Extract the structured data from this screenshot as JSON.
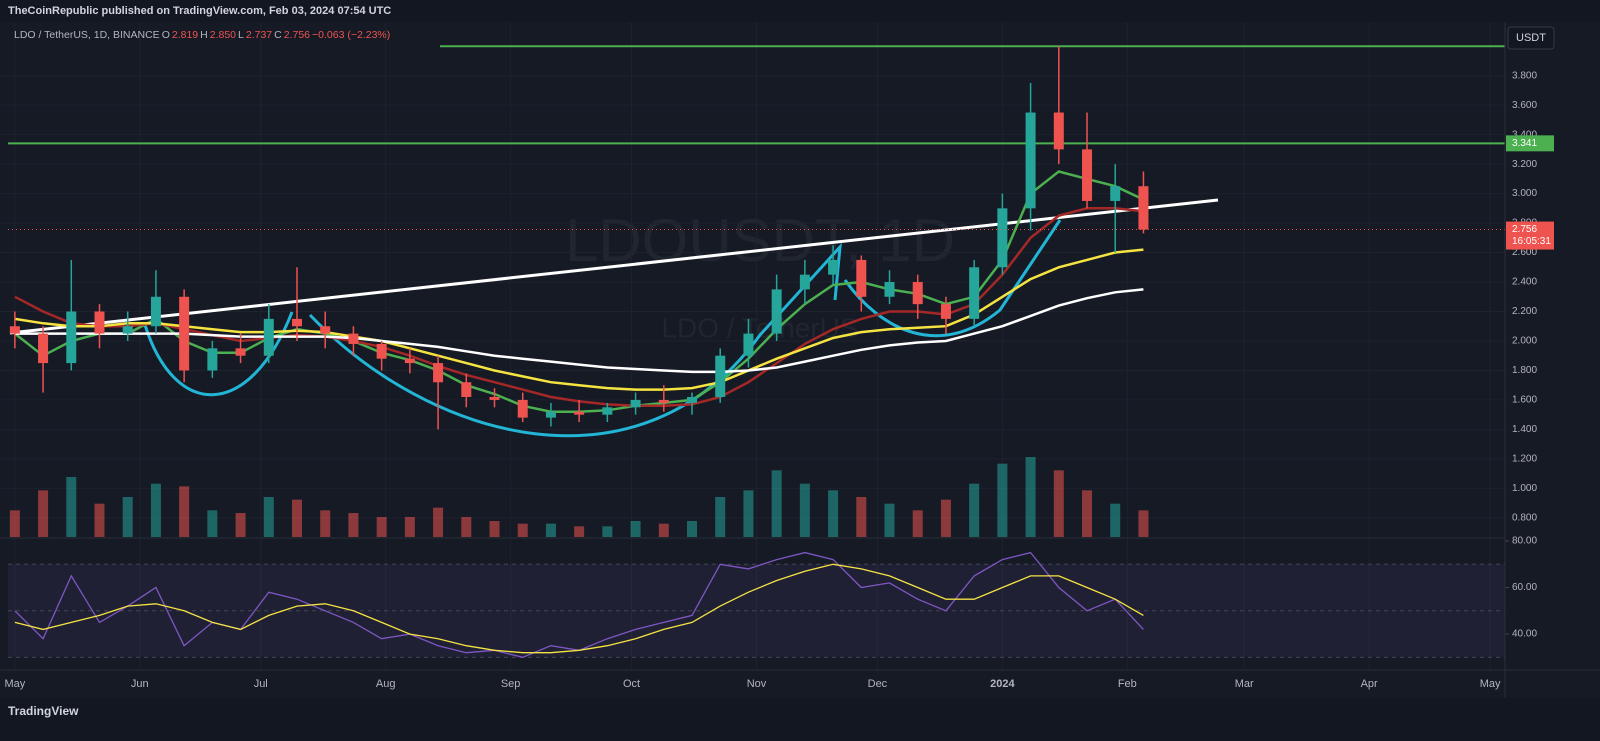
{
  "header": {
    "publisher": "TheCoinRepublic published on TradingView.com, Feb 03, 2024 07:54 UTC",
    "symbol": "LDO / TetherUS, 1D, BINANCE",
    "ohlc": [
      {
        "key": "O",
        "value": "2.819"
      },
      {
        "key": "H",
        "value": "2.850"
      },
      {
        "key": "L",
        "value": "2.737"
      },
      {
        "key": "C",
        "value": "2.756"
      }
    ],
    "change": "−0.063 (−2.23%)"
  },
  "footer": "TradingView",
  "chart_data": {
    "type": "candlestick",
    "currency": "USDT",
    "watermark": "LDOUSDT, 1D",
    "watermark_sub": "LDO / TetherUS",
    "up_color": "#26a69a",
    "down_color": "#ef5350",
    "x": [
      0,
      7,
      14,
      21,
      28,
      35,
      42,
      49,
      56,
      63,
      70,
      77,
      84,
      91,
      98,
      105,
      112,
      119,
      126,
      133,
      140,
      147,
      154,
      161,
      168,
      175,
      182,
      189,
      196,
      203,
      210,
      217,
      224,
      231,
      238,
      245,
      252,
      259,
      266,
      273,
      280
    ],
    "open": [
      2.1,
      2.05,
      1.85,
      2.2,
      2.05,
      2.1,
      2.3,
      1.8,
      1.95,
      1.9,
      2.15,
      2.1,
      2.05,
      1.98,
      1.88,
      1.85,
      1.72,
      1.62,
      1.6,
      1.48,
      1.52,
      1.5,
      1.55,
      1.6,
      1.58,
      1.62,
      1.9,
      2.05,
      2.35,
      2.45,
      2.55,
      2.3,
      2.4,
      2.25,
      2.15,
      2.5,
      2.9,
      3.55,
      3.3,
      2.95,
      3.05
    ],
    "high": [
      2.2,
      2.1,
      2.55,
      2.25,
      2.2,
      2.48,
      2.35,
      2.0,
      2.05,
      2.25,
      2.5,
      2.2,
      2.1,
      2.0,
      1.95,
      1.9,
      1.78,
      1.68,
      1.65,
      1.58,
      1.6,
      1.58,
      1.65,
      1.7,
      1.65,
      1.95,
      2.15,
      2.45,
      2.55,
      2.65,
      2.58,
      2.48,
      2.45,
      2.3,
      2.55,
      3.0,
      3.75,
      4.0,
      3.55,
      3.2,
      3.15
    ],
    "low": [
      1.95,
      1.65,
      1.8,
      1.95,
      2.0,
      2.05,
      1.72,
      1.75,
      1.85,
      1.85,
      2.0,
      1.95,
      1.9,
      1.8,
      1.78,
      1.4,
      1.55,
      1.55,
      1.45,
      1.42,
      1.45,
      1.45,
      1.5,
      1.52,
      1.5,
      1.58,
      1.82,
      2.0,
      2.25,
      2.38,
      2.2,
      2.25,
      2.15,
      2.05,
      2.1,
      2.45,
      2.75,
      3.2,
      2.9,
      2.6,
      2.73
    ],
    "close": [
      2.05,
      1.85,
      2.2,
      2.05,
      2.1,
      2.3,
      1.8,
      1.95,
      1.9,
      2.15,
      2.1,
      2.05,
      1.98,
      1.88,
      1.85,
      1.72,
      1.62,
      1.6,
      1.48,
      1.52,
      1.5,
      1.55,
      1.6,
      1.58,
      1.62,
      1.9,
      2.05,
      2.35,
      2.45,
      2.55,
      2.3,
      2.4,
      2.25,
      2.15,
      2.5,
      2.9,
      3.55,
      3.3,
      2.95,
      3.05,
      2.756
    ],
    "volume": [
      20,
      35,
      45,
      25,
      30,
      40,
      38,
      20,
      18,
      30,
      28,
      20,
      18,
      15,
      15,
      22,
      15,
      12,
      10,
      10,
      8,
      8,
      12,
      10,
      12,
      30,
      35,
      50,
      40,
      35,
      30,
      25,
      20,
      28,
      40,
      55,
      60,
      50,
      35,
      25,
      20
    ],
    "moving_averages": [
      {
        "color": "#4caf50",
        "values": [
          2.05,
          1.9,
          2.0,
          2.05,
          2.05,
          2.15,
          2.0,
          1.92,
          1.92,
          2.02,
          2.08,
          2.05,
          2.0,
          1.92,
          1.87,
          1.8,
          1.7,
          1.64,
          1.56,
          1.52,
          1.52,
          1.53,
          1.56,
          1.58,
          1.6,
          1.72,
          1.88,
          2.08,
          2.25,
          2.38,
          2.4,
          2.35,
          2.32,
          2.25,
          2.3,
          2.55,
          3.0,
          3.15,
          3.1,
          3.05,
          2.96
        ]
      },
      {
        "color": "#a52828",
        "values": [
          2.3,
          2.2,
          2.12,
          2.1,
          2.1,
          2.12,
          2.08,
          2.04,
          2.0,
          2.02,
          2.04,
          2.03,
          2.0,
          1.96,
          1.9,
          1.83,
          1.77,
          1.72,
          1.67,
          1.62,
          1.59,
          1.57,
          1.56,
          1.56,
          1.57,
          1.62,
          1.72,
          1.85,
          1.98,
          2.08,
          2.15,
          2.2,
          2.2,
          2.18,
          2.25,
          2.45,
          2.7,
          2.85,
          2.9,
          2.9,
          2.88
        ]
      },
      {
        "color": "#f5e342",
        "values": [
          2.15,
          2.12,
          2.1,
          2.1,
          2.12,
          2.12,
          2.1,
          2.08,
          2.06,
          2.06,
          2.07,
          2.06,
          2.03,
          2.0,
          1.95,
          1.9,
          1.85,
          1.8,
          1.76,
          1.72,
          1.7,
          1.68,
          1.67,
          1.67,
          1.68,
          1.72,
          1.8,
          1.88,
          1.95,
          2.02,
          2.06,
          2.08,
          2.09,
          2.1,
          2.18,
          2.3,
          2.42,
          2.5,
          2.55,
          2.6,
          2.62
        ]
      },
      {
        "color": "#ffffff",
        "values": [
          2.05,
          2.05,
          2.05,
          2.05,
          2.05,
          2.05,
          2.05,
          2.04,
          2.03,
          2.03,
          2.03,
          2.03,
          2.02,
          2.0,
          1.98,
          1.96,
          1.93,
          1.9,
          1.88,
          1.86,
          1.84,
          1.82,
          1.81,
          1.8,
          1.79,
          1.79,
          1.8,
          1.82,
          1.86,
          1.9,
          1.94,
          1.97,
          1.99,
          2.0,
          2.05,
          2.1,
          2.17,
          2.24,
          2.29,
          2.33,
          2.35
        ]
      }
    ],
    "levels": [
      4.0,
      {
        "value": 3.341,
        "label": "3.341"
      }
    ],
    "last_price": {
      "value": 2.756,
      "label": "2.756"
    },
    "countdown": "16:05:31",
    "xlim": [
      -1.7,
      369.7
    ],
    "xticks": [
      {
        "value": 0,
        "label": "May"
      },
      {
        "value": 31,
        "label": "Jun"
      },
      {
        "value": 61,
        "label": "Jul"
      },
      {
        "value": 92,
        "label": "Aug"
      },
      {
        "value": 123,
        "label": "Sep"
      },
      {
        "value": 153,
        "label": "Oct"
      },
      {
        "value": 184,
        "label": "Nov"
      },
      {
        "value": 214,
        "label": "Dec"
      },
      {
        "value": 245,
        "label": "2024"
      },
      {
        "value": 276,
        "label": "Feb"
      },
      {
        "value": 305,
        "label": "Mar"
      },
      {
        "value": 336,
        "label": "Apr"
      },
      {
        "value": 366,
        "label": "May"
      }
    ],
    "ylim": [
      0.67,
      4.11
    ],
    "yticks": [
      {
        "value": 0.8,
        "label": "0.800"
      },
      {
        "value": 1.0,
        "label": "1.000"
      },
      {
        "value": 1.2,
        "label": "1.200"
      },
      {
        "value": 1.4,
        "label": "1.400"
      },
      {
        "value": 1.6,
        "label": "1.600"
      },
      {
        "value": 1.8,
        "label": "1.800"
      },
      {
        "value": 2.0,
        "label": "2.000"
      },
      {
        "value": 2.2,
        "label": "2.200"
      },
      {
        "value": 2.4,
        "label": "2.400"
      },
      {
        "value": 2.6,
        "label": "2.600"
      },
      {
        "value": 2.8,
        "label": "2.800"
      },
      {
        "value": 3.0,
        "label": "3.000"
      },
      {
        "value": 3.2,
        "label": "3.200"
      },
      {
        "value": 3.4,
        "label": "3.400"
      },
      {
        "value": 3.6,
        "label": "3.600"
      },
      {
        "value": 3.8,
        "label": "3.800"
      }
    ],
    "rsi": {
      "color": "#7e57c2",
      "ma_color": "#f5e342",
      "values": [
        50,
        38,
        65,
        45,
        52,
        60,
        35,
        45,
        42,
        58,
        55,
        50,
        45,
        38,
        40,
        35,
        32,
        33,
        30,
        35,
        33,
        38,
        42,
        45,
        48,
        70,
        68,
        72,
        75,
        72,
        60,
        62,
        55,
        50,
        65,
        72,
        75,
        60,
        50,
        55,
        42
      ],
      "ma": [
        45,
        42,
        45,
        48,
        52,
        53,
        50,
        45,
        42,
        48,
        52,
        53,
        50,
        45,
        40,
        38,
        35,
        33,
        32,
        32,
        33,
        35,
        38,
        42,
        45,
        52,
        58,
        63,
        67,
        70,
        68,
        65,
        60,
        55,
        55,
        60,
        65,
        65,
        60,
        55,
        48
      ],
      "ylim": [
        26.7,
        80
      ],
      "yticks": [
        {
          "value": 40,
          "label": "40.00"
        },
        {
          "value": 60,
          "label": "60.00"
        },
        {
          "value": 80,
          "label": "80.00"
        }
      ]
    }
  }
}
